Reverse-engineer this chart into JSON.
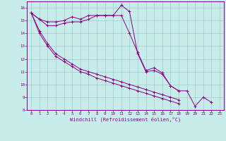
{
  "xlabel": "Windchill (Refroidissement éolien,°C)",
  "ylabel": "",
  "background_color": "#c8ecea",
  "grid_color": "#a0cccc",
  "line_color": "#880088",
  "spine_color": "#880088",
  "xlim": [
    -0.5,
    23.5
  ],
  "ylim": [
    8,
    16.5
  ],
  "xticks": [
    0,
    1,
    2,
    3,
    4,
    5,
    6,
    7,
    8,
    9,
    10,
    11,
    12,
    13,
    14,
    15,
    16,
    17,
    18,
    19,
    20,
    21,
    22,
    23
  ],
  "yticks": [
    8,
    9,
    10,
    11,
    12,
    13,
    14,
    15,
    16
  ],
  "hours": [
    0,
    1,
    2,
    3,
    4,
    5,
    6,
    7,
    8,
    9,
    10,
    11,
    12,
    13,
    14,
    15,
    16,
    17,
    18,
    19,
    20,
    21,
    22,
    23
  ],
  "line1": [
    15.6,
    15.1,
    14.9,
    14.9,
    15.0,
    15.3,
    15.1,
    15.4,
    15.4,
    15.4,
    15.4,
    16.2,
    15.7,
    12.4,
    11.0,
    11.1,
    10.8,
    9.9,
    9.5,
    9.5,
    8.3,
    9.0,
    8.6,
    null
  ],
  "line2": [
    15.6,
    15.1,
    14.6,
    14.6,
    14.8,
    14.9,
    14.9,
    15.1,
    15.4,
    15.4,
    15.4,
    15.4,
    14.0,
    12.5,
    11.1,
    11.3,
    10.9,
    9.9,
    9.5,
    null,
    null,
    null,
    null,
    null
  ],
  "line3": [
    15.6,
    14.2,
    13.2,
    12.4,
    12.0,
    11.6,
    11.2,
    11.0,
    10.8,
    10.6,
    10.4,
    10.2,
    10.0,
    9.8,
    9.6,
    9.4,
    9.2,
    9.0,
    8.8,
    null,
    null,
    null,
    null,
    null
  ],
  "line4": [
    15.6,
    14.0,
    13.0,
    12.2,
    11.8,
    11.4,
    11.0,
    10.8,
    10.5,
    10.3,
    10.1,
    9.9,
    9.7,
    9.5,
    9.3,
    9.1,
    8.9,
    8.7,
    8.5,
    null,
    null,
    null,
    null,
    null
  ]
}
